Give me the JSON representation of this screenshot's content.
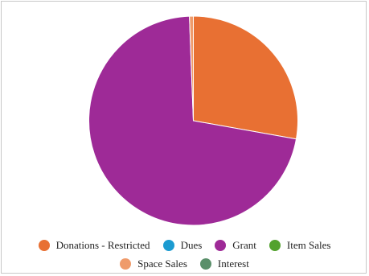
{
  "chart_data": {
    "type": "pie",
    "title": "",
    "legend_position": "bottom",
    "series": [
      {
        "name": "Donations - Restricted",
        "value": 27.8,
        "color": "#e87033"
      },
      {
        "name": "Dues",
        "value": 0,
        "color": "#1b9bd1"
      },
      {
        "name": "Grant",
        "value": 71.6,
        "color": "#9e2a97"
      },
      {
        "name": "Item Sales",
        "value": 0,
        "color": "#52a22e"
      },
      {
        "name": "Space Sales",
        "value": 0.6,
        "color": "#ef9b6b"
      },
      {
        "name": "Interest",
        "value": 0,
        "color": "#5a8f6a"
      }
    ]
  }
}
